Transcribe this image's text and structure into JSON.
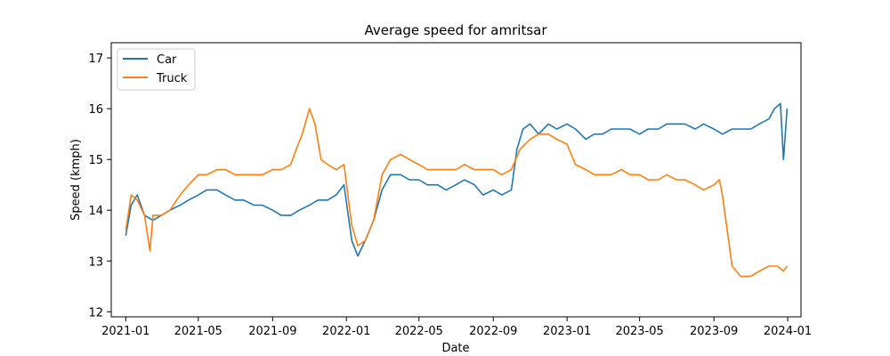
{
  "chart_data": {
    "type": "line",
    "title": "Average speed for amritsar",
    "xlabel": "Date",
    "ylabel": "Speed (kmph)",
    "xlim": [
      "2020-12-08",
      "2024-01-23"
    ],
    "ylim": [
      11.9,
      17.3
    ],
    "grid": false,
    "legend": "top-left",
    "x_ticks": [
      "2021-01",
      "2021-05",
      "2021-09",
      "2022-01",
      "2022-05",
      "2022-09",
      "2023-01",
      "2023-05",
      "2023-09",
      "2024-01"
    ],
    "y_ticks": [
      12,
      13,
      14,
      15,
      16,
      17
    ],
    "series": [
      {
        "name": "Car",
        "color": "#1f77b4",
        "x": [
          "2021-01-01",
          "2021-01-10",
          "2021-01-20",
          "2021-02-01",
          "2021-02-15",
          "2021-03-01",
          "2021-03-15",
          "2021-04-01",
          "2021-04-15",
          "2021-05-01",
          "2021-05-15",
          "2021-06-01",
          "2021-06-15",
          "2021-07-01",
          "2021-07-15",
          "2021-08-01",
          "2021-08-15",
          "2021-09-01",
          "2021-09-15",
          "2021-10-01",
          "2021-10-15",
          "2021-11-01",
          "2021-11-15",
          "2021-12-01",
          "2021-12-15",
          "2021-12-28",
          "2022-01-10",
          "2022-01-20",
          "2022-02-01",
          "2022-02-15",
          "2022-03-01",
          "2022-03-15",
          "2022-04-01",
          "2022-04-15",
          "2022-05-01",
          "2022-05-15",
          "2022-06-01",
          "2022-06-15",
          "2022-07-01",
          "2022-07-15",
          "2022-08-01",
          "2022-08-15",
          "2022-09-01",
          "2022-09-15",
          "2022-10-01",
          "2022-10-10",
          "2022-10-20",
          "2022-11-01",
          "2022-11-15",
          "2022-12-01",
          "2022-12-15",
          "2023-01-01",
          "2023-01-15",
          "2023-02-01",
          "2023-02-15",
          "2023-03-01",
          "2023-03-15",
          "2023-04-01",
          "2023-04-15",
          "2023-05-01",
          "2023-05-15",
          "2023-06-01",
          "2023-06-15",
          "2023-07-01",
          "2023-07-15",
          "2023-08-01",
          "2023-08-15",
          "2023-09-01",
          "2023-09-15",
          "2023-10-01",
          "2023-10-15",
          "2023-11-01",
          "2023-11-15",
          "2023-12-01",
          "2023-12-10",
          "2023-12-20",
          "2023-12-25",
          "2023-12-31"
        ],
        "values": [
          13.5,
          14.1,
          14.3,
          13.9,
          13.8,
          13.9,
          14.0,
          14.1,
          14.2,
          14.3,
          14.4,
          14.4,
          14.3,
          14.2,
          14.2,
          14.1,
          14.1,
          14.0,
          13.9,
          13.9,
          14.0,
          14.1,
          14.2,
          14.2,
          14.3,
          14.5,
          13.4,
          13.1,
          13.4,
          13.8,
          14.4,
          14.7,
          14.7,
          14.6,
          14.6,
          14.5,
          14.5,
          14.4,
          14.5,
          14.6,
          14.5,
          14.3,
          14.4,
          14.3,
          14.4,
          15.2,
          15.6,
          15.7,
          15.5,
          15.7,
          15.6,
          15.7,
          15.6,
          15.4,
          15.5,
          15.5,
          15.6,
          15.6,
          15.6,
          15.5,
          15.6,
          15.6,
          15.7,
          15.7,
          15.7,
          15.6,
          15.7,
          15.6,
          15.5,
          15.6,
          15.6,
          15.6,
          15.7,
          15.8,
          16.0,
          16.1,
          15.0,
          16.0
        ]
      },
      {
        "name": "Truck",
        "color": "#ff7f0e",
        "x": [
          "2021-01-01",
          "2021-01-10",
          "2021-01-20",
          "2021-02-01",
          "2021-02-10",
          "2021-02-15",
          "2021-03-01",
          "2021-03-15",
          "2021-04-01",
          "2021-04-15",
          "2021-05-01",
          "2021-05-15",
          "2021-06-01",
          "2021-06-15",
          "2021-07-01",
          "2021-07-15",
          "2021-08-01",
          "2021-08-15",
          "2021-09-01",
          "2021-09-15",
          "2021-10-01",
          "2021-10-10",
          "2021-10-20",
          "2021-11-01",
          "2021-11-10",
          "2021-11-20",
          "2021-12-01",
          "2021-12-15",
          "2021-12-28",
          "2022-01-10",
          "2022-01-20",
          "2022-02-01",
          "2022-02-15",
          "2022-03-01",
          "2022-03-15",
          "2022-04-01",
          "2022-04-15",
          "2022-05-01",
          "2022-05-15",
          "2022-06-01",
          "2022-06-15",
          "2022-07-01",
          "2022-07-15",
          "2022-08-01",
          "2022-08-15",
          "2022-09-01",
          "2022-09-15",
          "2022-10-01",
          "2022-10-15",
          "2022-11-01",
          "2022-11-15",
          "2022-12-01",
          "2022-12-15",
          "2023-01-01",
          "2023-01-15",
          "2023-02-01",
          "2023-02-15",
          "2023-03-01",
          "2023-03-15",
          "2023-04-01",
          "2023-04-15",
          "2023-05-01",
          "2023-05-15",
          "2023-06-01",
          "2023-06-15",
          "2023-07-01",
          "2023-07-15",
          "2023-08-01",
          "2023-08-15",
          "2023-09-01",
          "2023-09-10",
          "2023-09-15",
          "2023-10-01",
          "2023-10-15",
          "2023-11-01",
          "2023-11-15",
          "2023-12-01",
          "2023-12-15",
          "2023-12-25",
          "2023-12-31"
        ],
        "values": [
          13.6,
          14.3,
          14.2,
          13.9,
          13.2,
          13.9,
          13.9,
          14.0,
          14.3,
          14.5,
          14.7,
          14.7,
          14.8,
          14.8,
          14.7,
          14.7,
          14.7,
          14.7,
          14.8,
          14.8,
          14.9,
          15.2,
          15.5,
          16.0,
          15.7,
          15.0,
          14.9,
          14.8,
          14.9,
          13.7,
          13.3,
          13.4,
          13.8,
          14.7,
          15.0,
          15.1,
          15.0,
          14.9,
          14.8,
          14.8,
          14.8,
          14.8,
          14.9,
          14.8,
          14.8,
          14.8,
          14.7,
          14.8,
          15.2,
          15.4,
          15.5,
          15.5,
          15.4,
          15.3,
          14.9,
          14.8,
          14.7,
          14.7,
          14.7,
          14.8,
          14.7,
          14.7,
          14.6,
          14.6,
          14.7,
          14.6,
          14.6,
          14.5,
          14.4,
          14.5,
          14.6,
          14.3,
          12.9,
          12.7,
          12.7,
          12.8,
          12.9,
          12.9,
          12.8,
          12.9
        ]
      }
    ]
  }
}
